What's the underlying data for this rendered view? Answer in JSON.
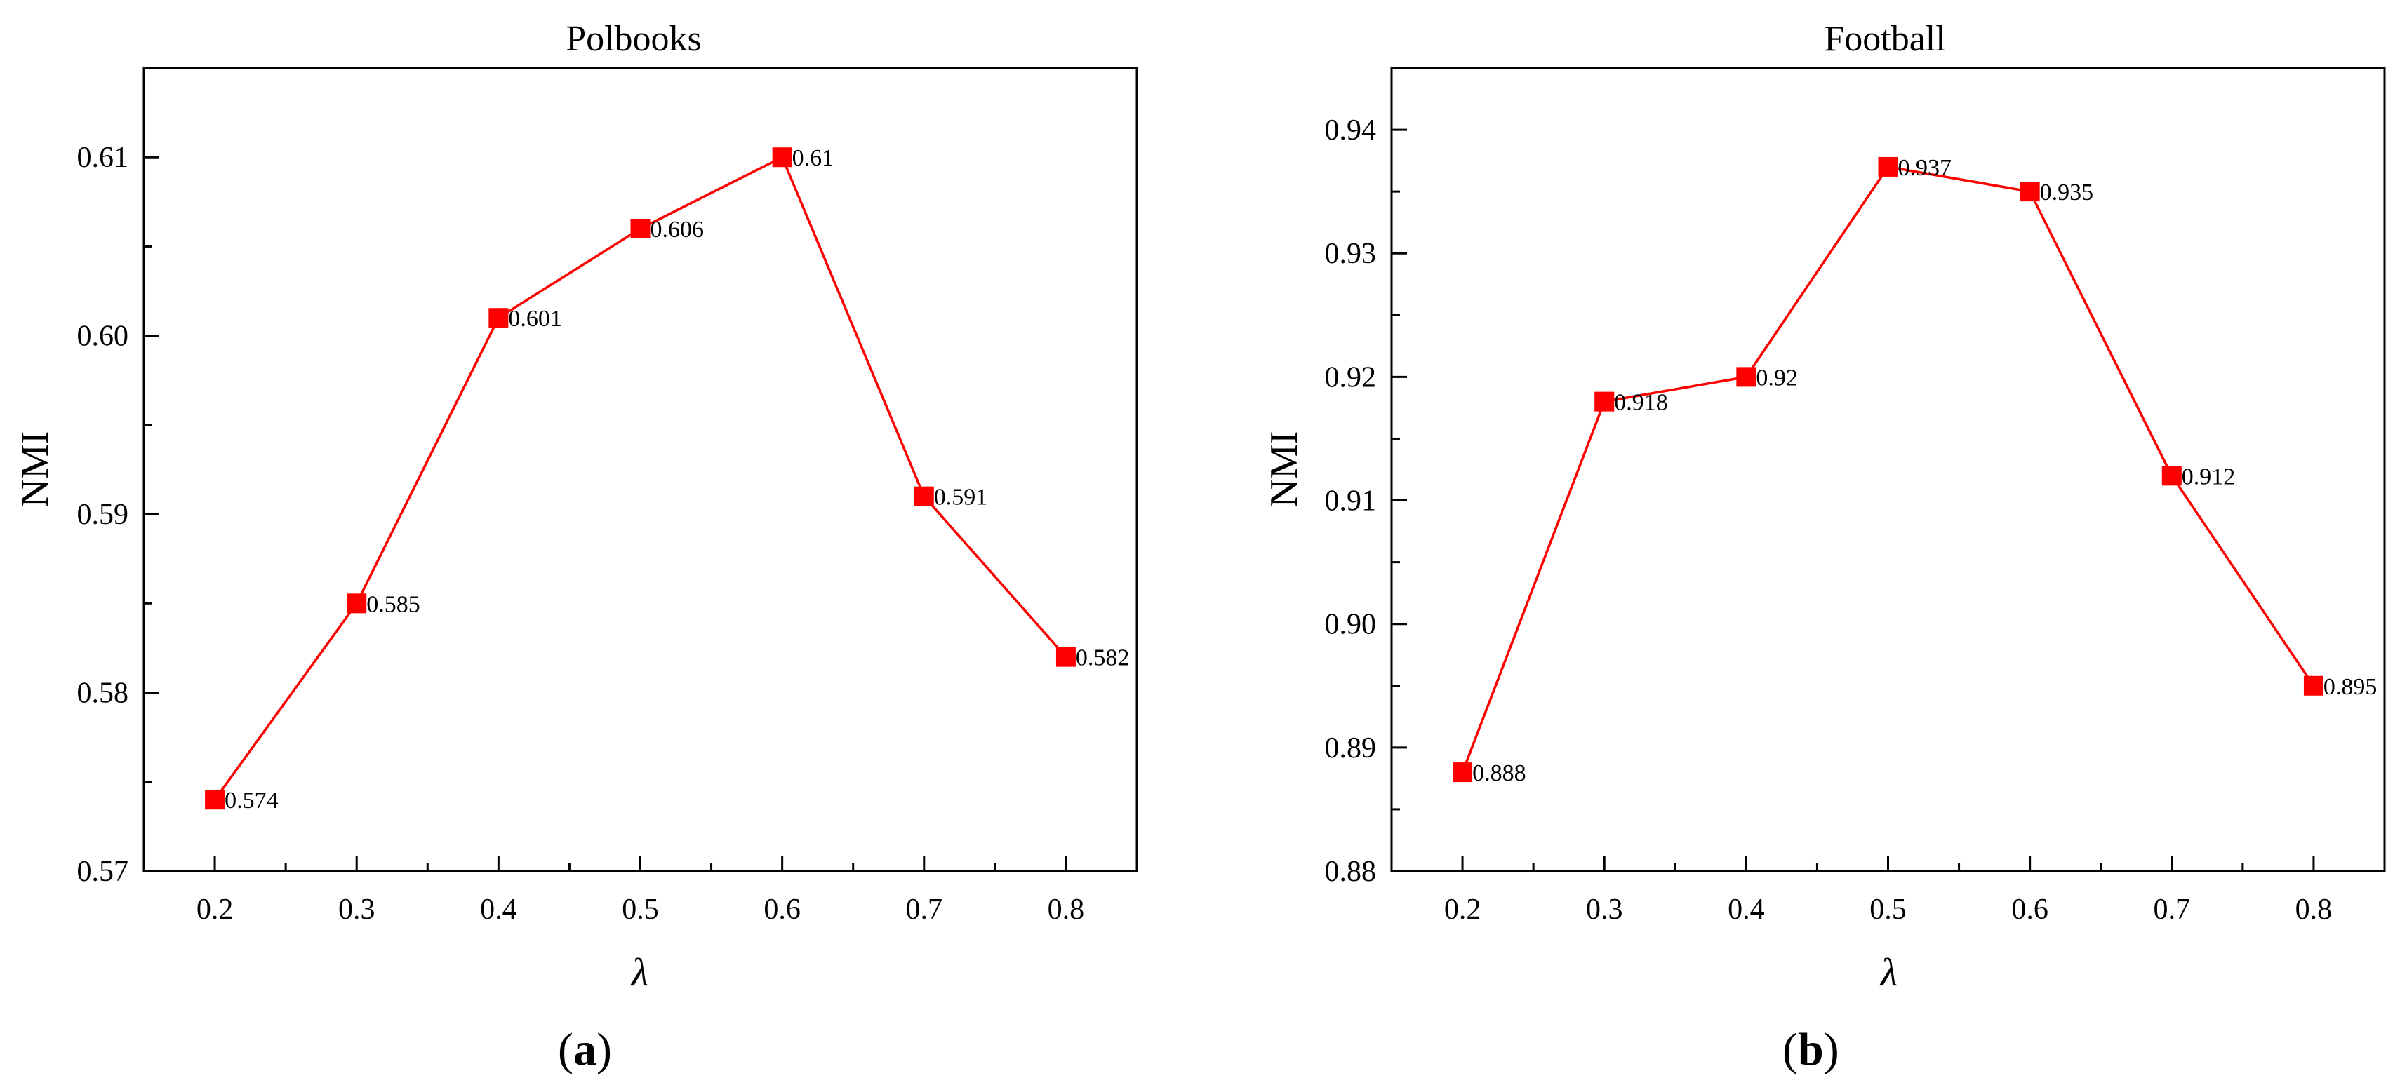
{
  "chart_data": [
    {
      "type": "line",
      "title": "Polbooks",
      "xlabel": "λ",
      "ylabel": "NMI",
      "panel_label": "a",
      "x": [
        0.2,
        0.3,
        0.4,
        0.5,
        0.6,
        0.7,
        0.8
      ],
      "x_ticks": [
        "0.2",
        "0.3",
        "0.4",
        "0.5",
        "0.6",
        "0.7",
        "0.8"
      ],
      "xlim": [
        0.15,
        0.85
      ],
      "ylim": [
        0.57,
        0.615
      ],
      "y_ticks": [
        "0.57",
        "0.58",
        "0.59",
        "0.60",
        "0.61"
      ],
      "series": [
        {
          "values": [
            0.574,
            0.585,
            0.601,
            0.606,
            0.61,
            0.591,
            0.582
          ],
          "labels": [
            "0.574",
            "0.585",
            "0.601",
            "0.606",
            "0.61",
            "0.591",
            "0.582"
          ],
          "color": "#ff0000",
          "marker": "square"
        }
      ],
      "grid": false,
      "legend": "none"
    },
    {
      "type": "line",
      "title": "Football",
      "xlabel": "λ",
      "ylabel": "NMI",
      "panel_label": "b",
      "x": [
        0.2,
        0.3,
        0.4,
        0.5,
        0.6,
        0.7,
        0.8
      ],
      "x_ticks": [
        "0.2",
        "0.3",
        "0.4",
        "0.5",
        "0.6",
        "0.7",
        "0.8"
      ],
      "xlim": [
        0.15,
        0.85
      ],
      "ylim": [
        0.88,
        0.945
      ],
      "y_ticks": [
        "0.88",
        "0.89",
        "0.90",
        "0.91",
        "0.92",
        "0.93",
        "0.94"
      ],
      "series": [
        {
          "values": [
            0.888,
            0.918,
            0.92,
            0.937,
            0.935,
            0.912,
            0.895
          ],
          "labels": [
            "0.888",
            "0.918",
            "0.92",
            "0.937",
            "0.935",
            "0.912",
            "0.895"
          ],
          "color": "#ff0000",
          "marker": "square"
        }
      ],
      "grid": false,
      "legend": "none"
    }
  ]
}
